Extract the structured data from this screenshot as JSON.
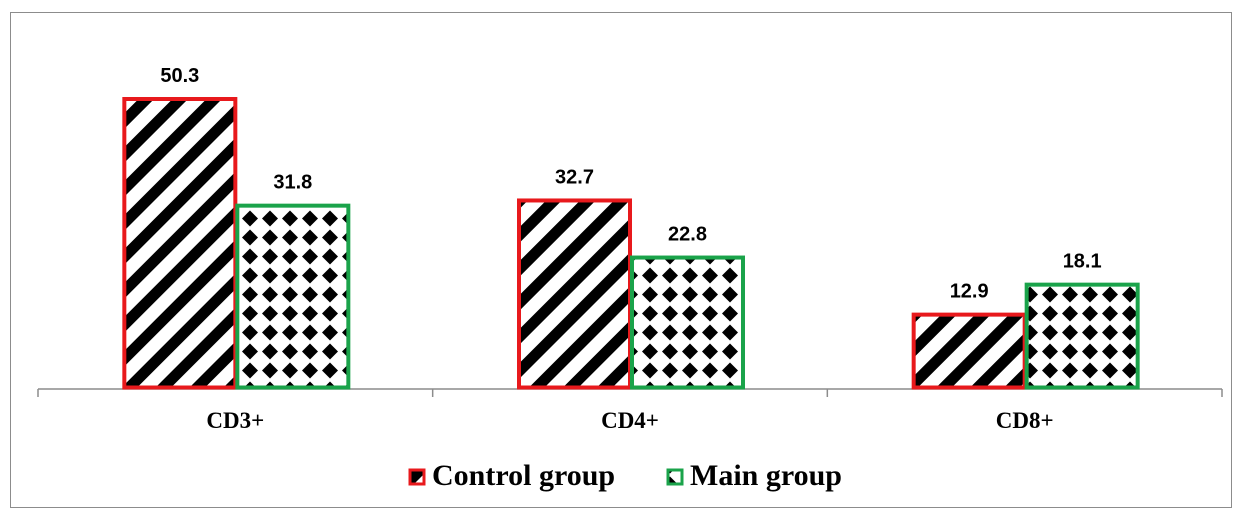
{
  "chart_data": {
    "type": "bar",
    "categories": [
      "CD3+",
      "CD4+",
      "CD8+"
    ],
    "series": [
      {
        "name": "Control group",
        "values": [
          50.3,
          32.7,
          12.9
        ],
        "color": "#e8191c",
        "pattern": "diagonal-stripes"
      },
      {
        "name": "Main group",
        "values": [
          31.8,
          22.8,
          18.1
        ],
        "color": "#1aa34a",
        "pattern": "diamond-checker"
      }
    ],
    "value_labels": [
      [
        "50.3",
        "32.7",
        "12.9"
      ],
      [
        "31.8",
        "22.8",
        "18.1"
      ]
    ],
    "ylim": [
      0,
      50.3
    ],
    "grid": false,
    "legend_position": "bottom"
  }
}
